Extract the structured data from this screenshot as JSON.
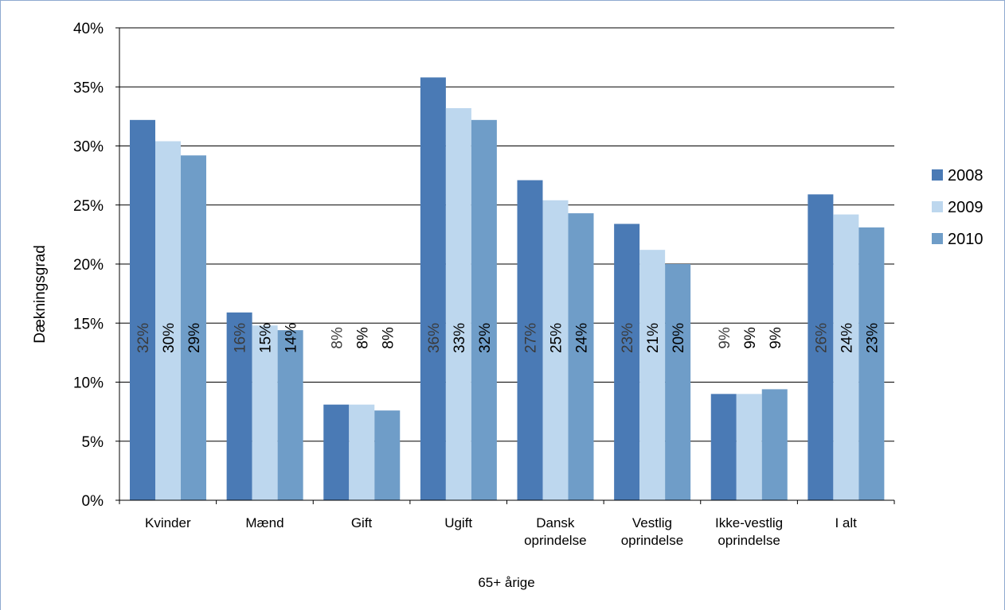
{
  "chart_data": {
    "type": "bar",
    "title": "",
    "xlabel": "65+ årige",
    "ylabel": "Dækningsgrad",
    "ylim": [
      0,
      40
    ],
    "yticks": [
      "0%",
      "5%",
      "10%",
      "15%",
      "20%",
      "25%",
      "30%",
      "35%",
      "40%"
    ],
    "grid": true,
    "legend_position": "right",
    "categories": [
      [
        "Kvinder"
      ],
      [
        "Mænd"
      ],
      [
        "Gift"
      ],
      [
        "Ugift"
      ],
      [
        "Dansk",
        "oprindelse"
      ],
      [
        "Vestlig",
        "oprindelse"
      ],
      [
        "Ikke-vestlig",
        "oprindelse"
      ],
      [
        "I alt"
      ]
    ],
    "series": [
      {
        "name": "2008",
        "color": "#4a7ab5",
        "label_color": "#3a3a3a",
        "values": [
          32.2,
          15.9,
          8.1,
          35.8,
          27.1,
          23.4,
          9.0,
          25.9
        ],
        "labels": [
          "32%",
          "16%",
          "8%",
          "36%",
          "27%",
          "23%",
          "9%",
          "26%"
        ]
      },
      {
        "name": "2009",
        "color": "#bdd7ee",
        "label_color": "#000000",
        "values": [
          30.4,
          14.8,
          8.1,
          33.2,
          25.4,
          21.2,
          9.0,
          24.2
        ],
        "labels": [
          "30%",
          "15%",
          "8%",
          "33%",
          "25%",
          "21%",
          "9%",
          "24%"
        ]
      },
      {
        "name": "2010",
        "color": "#6f9dc8",
        "label_color": "#000000",
        "values": [
          29.2,
          14.4,
          7.6,
          32.2,
          24.3,
          20.0,
          9.4,
          23.1
        ],
        "labels": [
          "29%",
          "14%",
          "8%",
          "32%",
          "24%",
          "20%",
          "9%",
          "23%"
        ]
      }
    ]
  }
}
